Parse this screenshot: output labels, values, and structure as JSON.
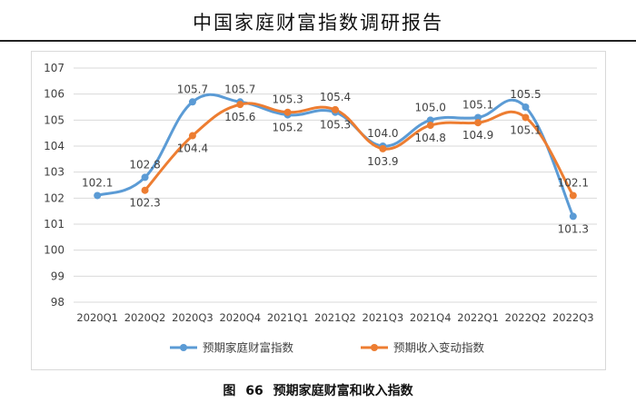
{
  "header": {
    "report_title": "中国家庭财富指数调研报告"
  },
  "figure": {
    "label": "图",
    "number": "66",
    "caption": "预期家庭财富和收入指数"
  },
  "colors": {
    "series_1": "#5B9BD5",
    "series_2": "#ED7D31",
    "gridline": "#d9d9d9",
    "text": "#404040"
  },
  "chart_data": {
    "type": "line",
    "categories": [
      "2020Q1",
      "2020Q2",
      "2020Q3",
      "2020Q4",
      "2021Q1",
      "2021Q2",
      "2021Q3",
      "2021Q4",
      "2022Q1",
      "2022Q2",
      "2022Q3"
    ],
    "ylim": [
      98,
      107
    ],
    "yticks": [
      98,
      99,
      100,
      101,
      102,
      103,
      104,
      105,
      106,
      107
    ],
    "grid": true,
    "smooth": true,
    "legend": "bottom",
    "series": [
      {
        "name": "预期家庭财富指数",
        "values": [
          102.1,
          102.8,
          105.7,
          105.7,
          105.2,
          105.3,
          104.0,
          105.0,
          105.1,
          105.5,
          101.3
        ],
        "labels": [
          "102.1",
          "102.8",
          "105.7",
          "105.7",
          "105.2",
          "105.3",
          "104.0",
          "105.0",
          "105.1",
          "105.5",
          "101.3"
        ]
      },
      {
        "name": "预期收入变动指数",
        "values": [
          null,
          102.3,
          104.4,
          105.6,
          105.3,
          105.4,
          103.9,
          104.8,
          104.9,
          105.1,
          102.1
        ],
        "labels": [
          null,
          "102.3",
          "104.4",
          "105.6",
          "105.3",
          "105.4",
          "103.9",
          "104.8",
          "104.9",
          "105.1",
          "102.1"
        ]
      }
    ]
  }
}
